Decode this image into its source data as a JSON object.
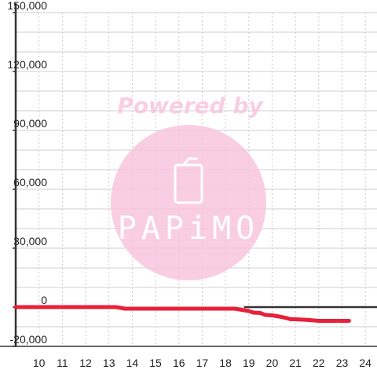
{
  "chart_data": {
    "type": "line",
    "title": "",
    "xlabel": "",
    "ylabel": "",
    "xlim": [
      9.0,
      24.5
    ],
    "ylim": [
      -20000,
      150000
    ],
    "grid": true,
    "x_ticks": [
      10,
      11,
      12,
      13,
      14,
      15,
      16,
      17,
      18,
      19,
      20,
      21,
      22,
      23,
      24
    ],
    "x_tick_labels": [
      "10",
      "11",
      "12",
      "13",
      "14",
      "15",
      "16",
      "17",
      "18",
      "19",
      "20",
      "21",
      "22",
      "23",
      "24"
    ],
    "y_ticks": [
      -20000,
      0,
      30000,
      60000,
      90000,
      120000,
      150000
    ],
    "y_tick_labels": [
      "-20,000",
      "0",
      "30,000",
      "60,000",
      "90,000",
      "120,000",
      "150,000"
    ],
    "series": [
      {
        "color": "#e8203a",
        "x": [
          9.0,
          13.3,
          13.7,
          14.0,
          18.4,
          18.6,
          19.0,
          19.2,
          19.5,
          19.7,
          20.0,
          20.3,
          20.6,
          20.8,
          21.0,
          21.5,
          21.8,
          22.0,
          22.5,
          23.3
        ],
        "y": [
          0,
          0,
          -800,
          -800,
          -800,
          -1200,
          -2000,
          -2800,
          -3000,
          -4000,
          -4200,
          -4800,
          -5500,
          -6200,
          -6200,
          -6500,
          -6800,
          -7000,
          -7000,
          -7000
        ]
      }
    ],
    "reference_line": {
      "y": 0,
      "x_start": 18.8,
      "x_end": 24.5,
      "color": "#333333"
    }
  },
  "watermark": {
    "text": "Powered by",
    "logo_text": "PAPiMO",
    "color": "#f9c6de",
    "icon": "phone-icon"
  }
}
